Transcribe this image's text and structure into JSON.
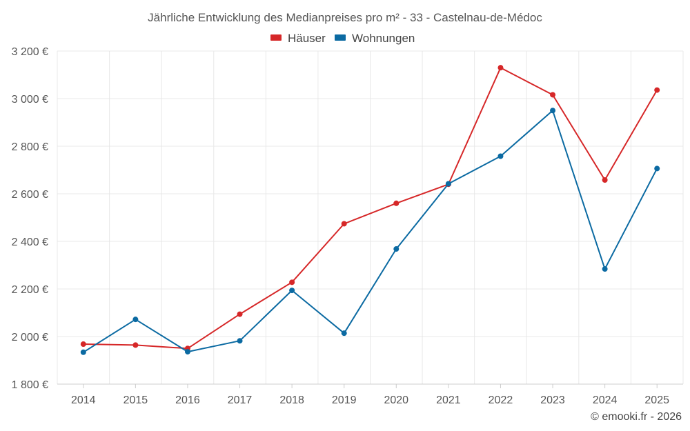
{
  "chart_data": {
    "type": "line",
    "title": "Jährliche Entwicklung des Medianpreises pro m² - 33 - Castelnau-de-Médoc",
    "categories": [
      "2014",
      "2015",
      "2016",
      "2017",
      "2018",
      "2019",
      "2020",
      "2021",
      "2022",
      "2023",
      "2024",
      "2025"
    ],
    "series": [
      {
        "name": "Häuser",
        "color": "#d62728",
        "values": [
          1968,
          1964,
          1950,
          2094,
          2228,
          2474,
          2560,
          2640,
          3130,
          3016,
          2658,
          3036
        ]
      },
      {
        "name": "Wohnungen",
        "color": "#0b6aa2",
        "values": [
          1934,
          2072,
          1936,
          1982,
          2194,
          2014,
          2368,
          2642,
          2758,
          2950,
          2284,
          2706
        ]
      }
    ],
    "y_ticks": [
      "1 800 €",
      "2 000 €",
      "2 200 €",
      "2 400 €",
      "2 600 €",
      "2 800 €",
      "3 000 €",
      "3 200 €"
    ],
    "ylim": [
      1800,
      3200
    ],
    "xlabel": "",
    "ylabel": "",
    "grid": true,
    "legend": "top-center"
  },
  "copyright": "© emooki.fr - 2026"
}
